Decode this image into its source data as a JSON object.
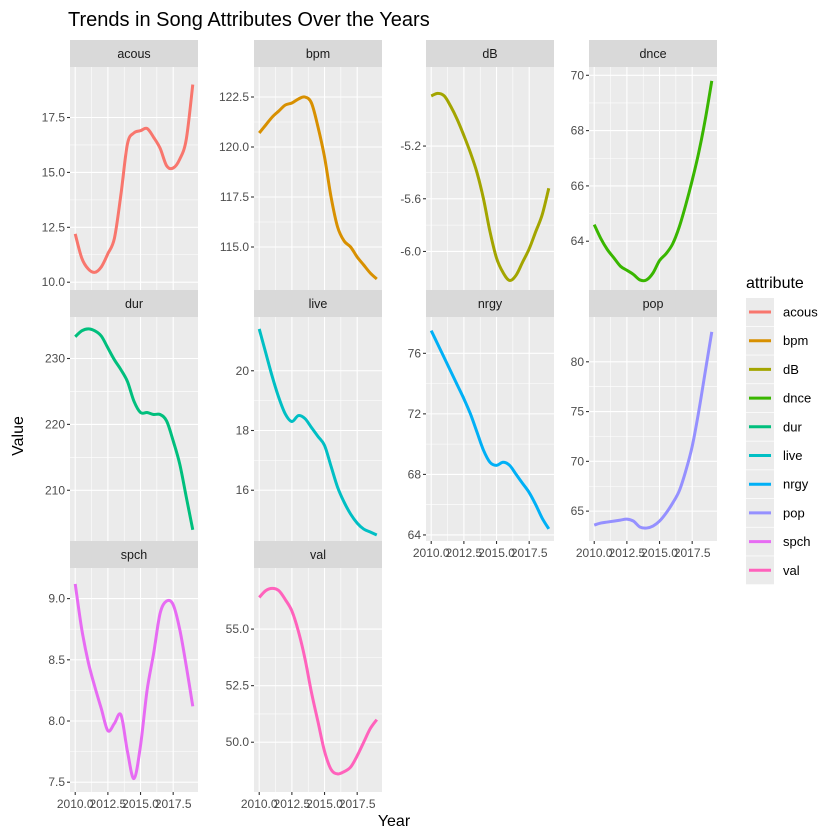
{
  "chart_data": {
    "type": "line",
    "title": "Trends in Song Attributes Over the Years",
    "xlabel": "Year",
    "ylabel": "Value",
    "xlim": [
      2009.6,
      2019.4
    ],
    "x_ticks": [
      2010.0,
      2012.5,
      2015.0,
      2017.5
    ],
    "x_tick_labels": [
      "2010.0",
      "2012.5",
      "2015.0",
      "2017.5"
    ],
    "grid": true,
    "legend": {
      "title": "attribute",
      "position": "right"
    },
    "facets": [
      {
        "name": "acous",
        "color": "#F8766D",
        "ylim": [
          9.6,
          19.8
        ],
        "y_ticks": [
          10.0,
          12.5,
          15.0,
          17.5
        ],
        "y_tick_labels": [
          "10.0",
          "12.5",
          "15.0",
          "17.5"
        ],
        "x": [
          2010.0,
          2010.5,
          2011.0,
          2011.5,
          2012.0,
          2012.5,
          2013.0,
          2013.5,
          2014.0,
          2014.5,
          2015.0,
          2015.5,
          2016.0,
          2016.5,
          2017.0,
          2017.5,
          2018.0,
          2018.5,
          2019.0
        ],
        "values": [
          12.2,
          11.1,
          10.6,
          10.45,
          10.7,
          11.3,
          12.0,
          14.0,
          16.3,
          16.8,
          16.9,
          17.0,
          16.6,
          16.1,
          15.3,
          15.2,
          15.6,
          16.5,
          19.0
        ]
      },
      {
        "name": "bpm",
        "color": "#D89000",
        "ylim": [
          112.8,
          124.0
        ],
        "y_ticks": [
          115.0,
          117.5,
          120.0,
          122.5
        ],
        "y_tick_labels": [
          "115.0",
          "117.5",
          "120.0",
          "122.5"
        ],
        "x": [
          2010.0,
          2010.5,
          2011.0,
          2011.5,
          2012.0,
          2012.5,
          2013.0,
          2013.5,
          2014.0,
          2014.5,
          2015.0,
          2015.5,
          2016.0,
          2016.5,
          2017.0,
          2017.5,
          2018.0,
          2018.5,
          2019.0
        ],
        "values": [
          120.7,
          121.1,
          121.5,
          121.8,
          122.1,
          122.2,
          122.4,
          122.5,
          122.2,
          121.0,
          119.5,
          117.5,
          116.0,
          115.3,
          115.0,
          114.5,
          114.1,
          113.7,
          113.4
        ]
      },
      {
        "name": "dB",
        "color": "#A3A500",
        "ylim": [
          -6.3,
          -4.6
        ],
        "y_ticks": [
          -6.0,
          -5.6,
          -5.2
        ],
        "y_tick_labels": [
          "-6.0",
          "-5.6",
          "-5.2"
        ],
        "x": [
          2010.0,
          2010.5,
          2011.0,
          2011.5,
          2012.0,
          2012.5,
          2013.0,
          2013.5,
          2014.0,
          2014.5,
          2015.0,
          2015.5,
          2016.0,
          2016.5,
          2017.0,
          2017.5,
          2018.0,
          2018.5,
          2019.0
        ],
        "values": [
          -4.82,
          -4.8,
          -4.82,
          -4.9,
          -5.0,
          -5.12,
          -5.25,
          -5.4,
          -5.6,
          -5.85,
          -6.05,
          -6.16,
          -6.22,
          -6.18,
          -6.08,
          -5.98,
          -5.85,
          -5.72,
          -5.52
        ]
      },
      {
        "name": "dnce",
        "color": "#39B600",
        "ylim": [
          62.2,
          70.3
        ],
        "y_ticks": [
          64,
          66,
          68,
          70
        ],
        "y_tick_labels": [
          "64",
          "66",
          "68",
          "70"
        ],
        "x": [
          2010.0,
          2010.5,
          2011.0,
          2011.5,
          2012.0,
          2012.5,
          2013.0,
          2013.5,
          2014.0,
          2014.5,
          2015.0,
          2015.5,
          2016.0,
          2016.5,
          2017.0,
          2017.5,
          2018.0,
          2018.5,
          2019.0
        ],
        "values": [
          64.6,
          64.1,
          63.7,
          63.4,
          63.1,
          62.95,
          62.8,
          62.6,
          62.6,
          62.85,
          63.3,
          63.55,
          63.9,
          64.5,
          65.3,
          66.2,
          67.2,
          68.4,
          69.8
        ]
      },
      {
        "name": "dur",
        "color": "#00BF7D",
        "ylim": [
          202.3,
          236.3
        ],
        "y_ticks": [
          210,
          220,
          230
        ],
        "y_tick_labels": [
          "210",
          "220",
          "230"
        ],
        "x": [
          2010.0,
          2010.5,
          2011.0,
          2011.5,
          2012.0,
          2012.5,
          2013.0,
          2013.5,
          2014.0,
          2014.5,
          2015.0,
          2015.5,
          2016.0,
          2016.5,
          2017.0,
          2017.5,
          2018.0,
          2018.5,
          2019.0
        ],
        "values": [
          233.3,
          234.2,
          234.5,
          234.2,
          233.4,
          231.6,
          229.8,
          228.3,
          226.5,
          223.5,
          221.8,
          221.8,
          221.5,
          221.5,
          220.5,
          217.5,
          214.0,
          209.0,
          204.0
        ]
      },
      {
        "name": "live",
        "color": "#00BFC4",
        "ylim": [
          14.3,
          21.8
        ],
        "y_ticks": [
          16,
          18,
          20
        ],
        "y_tick_labels": [
          "16",
          "18",
          "20"
        ],
        "x": [
          2010.0,
          2010.5,
          2011.0,
          2011.5,
          2012.0,
          2012.5,
          2013.0,
          2013.5,
          2014.0,
          2014.5,
          2015.0,
          2015.5,
          2016.0,
          2016.5,
          2017.0,
          2017.5,
          2018.0,
          2018.5,
          2019.0
        ],
        "values": [
          21.4,
          20.6,
          19.8,
          19.1,
          18.55,
          18.3,
          18.5,
          18.4,
          18.1,
          17.8,
          17.5,
          16.8,
          16.1,
          15.6,
          15.2,
          14.9,
          14.7,
          14.6,
          14.5
        ]
      },
      {
        "name": "nrgy",
        "color": "#00B0F6",
        "ylim": [
          63.6,
          78.4
        ],
        "y_ticks": [
          64,
          68,
          72,
          76
        ],
        "y_tick_labels": [
          "64",
          "68",
          "72",
          "76"
        ],
        "x": [
          2010.0,
          2010.5,
          2011.0,
          2011.5,
          2012.0,
          2012.5,
          2013.0,
          2013.5,
          2014.0,
          2014.5,
          2015.0,
          2015.5,
          2016.0,
          2016.5,
          2017.0,
          2017.5,
          2018.0,
          2018.5,
          2019.0
        ],
        "values": [
          77.5,
          76.6,
          75.7,
          74.8,
          73.9,
          73.0,
          72.0,
          70.8,
          69.6,
          68.8,
          68.6,
          68.8,
          68.6,
          68.0,
          67.4,
          66.8,
          66.0,
          65.1,
          64.4
        ]
      },
      {
        "name": "pop",
        "color": "#9590FF",
        "ylim": [
          62.0,
          84.5
        ],
        "y_ticks": [
          65,
          70,
          75,
          80
        ],
        "y_tick_labels": [
          "65",
          "70",
          "75",
          "80"
        ],
        "x": [
          2010.0,
          2010.5,
          2011.0,
          2011.5,
          2012.0,
          2012.5,
          2013.0,
          2013.5,
          2014.0,
          2014.5,
          2015.0,
          2015.5,
          2016.0,
          2016.5,
          2017.0,
          2017.5,
          2018.0,
          2018.5,
          2019.0
        ],
        "values": [
          63.6,
          63.8,
          63.9,
          64.0,
          64.1,
          64.2,
          64.0,
          63.4,
          63.3,
          63.5,
          64.0,
          64.8,
          65.8,
          67.0,
          69.0,
          71.5,
          75.0,
          79.0,
          83.0
        ]
      },
      {
        "name": "spch",
        "color": "#E76BF3",
        "ylim": [
          7.42,
          9.25
        ],
        "y_ticks": [
          7.5,
          8.0,
          8.5,
          9.0
        ],
        "y_tick_labels": [
          "7.5",
          "8.0",
          "8.5",
          "9.0"
        ],
        "x": [
          2010.0,
          2010.5,
          2011.0,
          2011.5,
          2012.0,
          2012.5,
          2013.0,
          2013.5,
          2014.0,
          2014.5,
          2015.0,
          2015.5,
          2016.0,
          2016.5,
          2017.0,
          2017.5,
          2018.0,
          2018.5,
          2019.0
        ],
        "values": [
          9.12,
          8.75,
          8.48,
          8.28,
          8.1,
          7.92,
          7.98,
          8.05,
          7.75,
          7.53,
          7.8,
          8.25,
          8.55,
          8.88,
          8.98,
          8.95,
          8.75,
          8.45,
          8.12
        ]
      },
      {
        "name": "val",
        "color": "#FF62BC",
        "ylim": [
          47.8,
          57.7
        ],
        "y_ticks": [
          50.0,
          52.5,
          55.0
        ],
        "y_tick_labels": [
          "50.0",
          "52.5",
          "55.0"
        ],
        "x": [
          2010.0,
          2010.5,
          2011.0,
          2011.5,
          2012.0,
          2012.5,
          2013.0,
          2013.5,
          2014.0,
          2014.5,
          2015.0,
          2015.5,
          2016.0,
          2016.5,
          2017.0,
          2017.5,
          2018.0,
          2018.5,
          2019.0
        ],
        "values": [
          56.4,
          56.7,
          56.8,
          56.7,
          56.3,
          55.8,
          54.9,
          53.7,
          52.2,
          50.9,
          49.6,
          48.8,
          48.6,
          48.7,
          48.9,
          49.4,
          50.0,
          50.6,
          51.0
        ]
      }
    ]
  }
}
